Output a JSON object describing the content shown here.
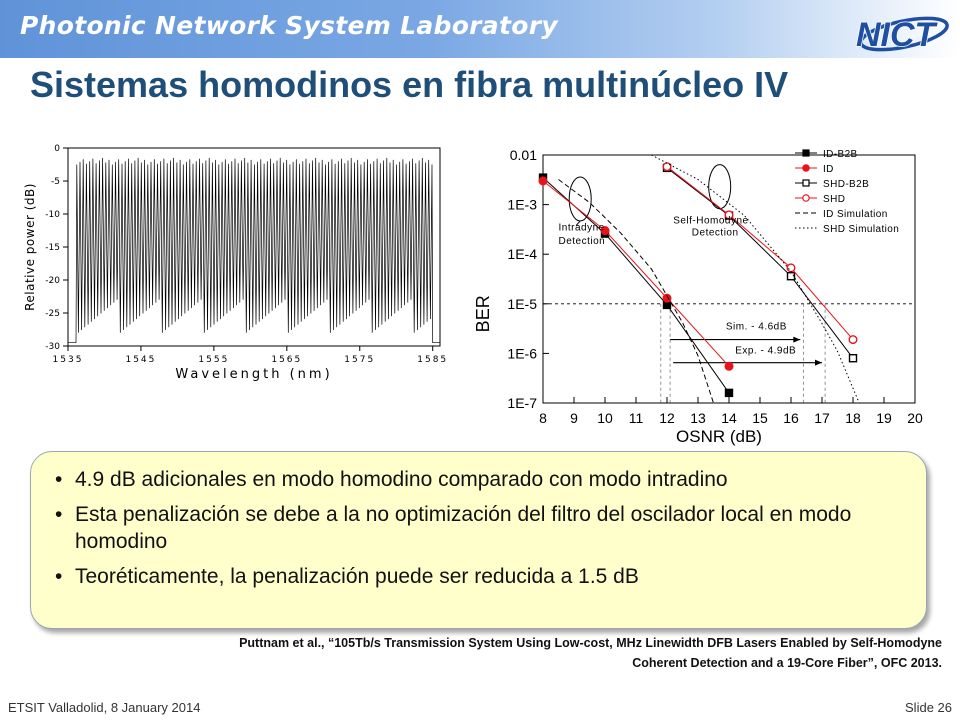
{
  "header": {
    "lab_name": "Photonic Network System Laboratory",
    "logo_text": "NICT",
    "colors": {
      "band_start": "#5f93d8",
      "logo_blue": "#1e4fa3",
      "title": "#1f4e79"
    }
  },
  "title": "Sistemas homodinos en fibra multinúcleo IV",
  "spectrum_chart": {
    "ylabel": "Relative power (dB)",
    "xlabel": "Wavelength (nm)",
    "yticks": [
      "0",
      "-5",
      "-10",
      "-15",
      "-20",
      "-25",
      "-30"
    ],
    "xticks": [
      "1535",
      "1545",
      "1555",
      "1565",
      "1575",
      "1585"
    ]
  },
  "chart_data": [
    {
      "type": "line",
      "title": "",
      "xlabel": "Wavelength (nm)",
      "ylabel": "Relative power (dB)",
      "xlim": [
        1535,
        1586
      ],
      "ylim": [
        -30,
        0
      ],
      "yticks": [
        0,
        -5,
        -10,
        -15,
        -20,
        -25,
        -30
      ],
      "xticks": [
        1535,
        1545,
        1555,
        1565,
        1575,
        1585
      ],
      "series": [
        {
          "type": "comb",
          "range_nm": [
            1536.2,
            1584.9
          ],
          "peak_db": [
            -2.5,
            -1.5
          ],
          "trough_db": [
            -28,
            -23
          ],
          "noise_floor_db": -29.5
        }
      ],
      "grid": false
    },
    {
      "type": "line",
      "title": "",
      "xlabel": "OSNR (dB)",
      "ylabel": "BER",
      "yscale": "log",
      "xlim": [
        8,
        20
      ],
      "ylim": [
        1e-07,
        0.01
      ],
      "xticks": [
        8,
        9,
        10,
        11,
        12,
        13,
        14,
        15,
        16,
        17,
        18,
        19,
        20
      ],
      "yticks": [
        "0.01",
        "1E-3",
        "1E-4",
        "1E-5",
        "1E-6",
        "1E-7"
      ],
      "threshold_ber": 1e-05,
      "legend_position": "top-right",
      "series": [
        {
          "name": "ID-B2B",
          "marker": "square-filled",
          "color": "#000000",
          "x": [
            8,
            10,
            12,
            14
          ],
          "y": [
            0.0035,
            0.00026,
            9.5e-06,
            1.6e-07
          ]
        },
        {
          "name": "ID",
          "marker": "circle-filled",
          "color": "#e8141c",
          "x": [
            8,
            10,
            12,
            14
          ],
          "y": [
            0.003,
            0.0003,
            1.3e-05,
            5.5e-07
          ]
        },
        {
          "name": "SHD-B2B",
          "marker": "square-open",
          "color": "#000000",
          "x": [
            12,
            14,
            16,
            18
          ],
          "y": [
            0.0055,
            0.0006,
            3.6e-05,
            8e-07
          ]
        },
        {
          "name": "SHD",
          "marker": "circle-open",
          "color": "#e8141c",
          "x": [
            12,
            14,
            16,
            18
          ],
          "y": [
            0.0058,
            0.00062,
            5.3e-05,
            1.9e-06
          ]
        },
        {
          "name": "ID Simulation",
          "style": "dashed",
          "color": "#000000",
          "x": [
            8.5,
            9.5,
            10.5,
            11.5,
            12.5,
            13,
            13.5
          ],
          "y": [
            0.0032,
            0.0011,
            0.00027,
            5e-05,
            4.2e-06,
            9e-07,
            1e-07
          ]
        },
        {
          "name": "SHD Simulation",
          "style": "dotted",
          "color": "#000000",
          "x": [
            11.5,
            13.0,
            14.5,
            16.0,
            17.0,
            17.5,
            18.2
          ],
          "y": [
            0.01,
            0.0032,
            0.0006,
            4.5e-05,
            4e-06,
            1.1e-06,
            1e-07
          ]
        }
      ],
      "annotations": [
        {
          "text": "Intradyne",
          "x": 8.5,
          "y": 0.0003
        },
        {
          "text": "Detection",
          "x": 8.5,
          "y": 0.00016
        },
        {
          "text": "Self-Homodyne",
          "x": 12.2,
          "y": 0.00042
        },
        {
          "text": "Detection",
          "x": 12.8,
          "y": 0.00024
        },
        {
          "text": "Sim. - 4.6dB",
          "x": 13.9,
          "y": 3e-06
        },
        {
          "text": "Exp. - 4.9dB",
          "x": 14.2,
          "y": 1e-06
        }
      ],
      "grid": false
    }
  ],
  "bullets": [
    "4.9 dB adicionales en modo homodino comparado con modo intradino",
    "Esta penalización se debe a la no optimización del filtro del oscilador local en modo homodino",
    "Teoréticamente, la penalización puede ser reducida a 1.5 dB"
  ],
  "citation": {
    "line1": "Puttnam et al., “105Tb/s Transmission System Using Low-cost, MHz Linewidth DFB Lasers Enabled by Self-Homodyne",
    "line2": "Coherent Detection and a 19-Core Fiber”, OFC 2013."
  },
  "footer": {
    "left": "ETSIT Valladolid, 8 January 2014",
    "right": "Slide 26"
  }
}
